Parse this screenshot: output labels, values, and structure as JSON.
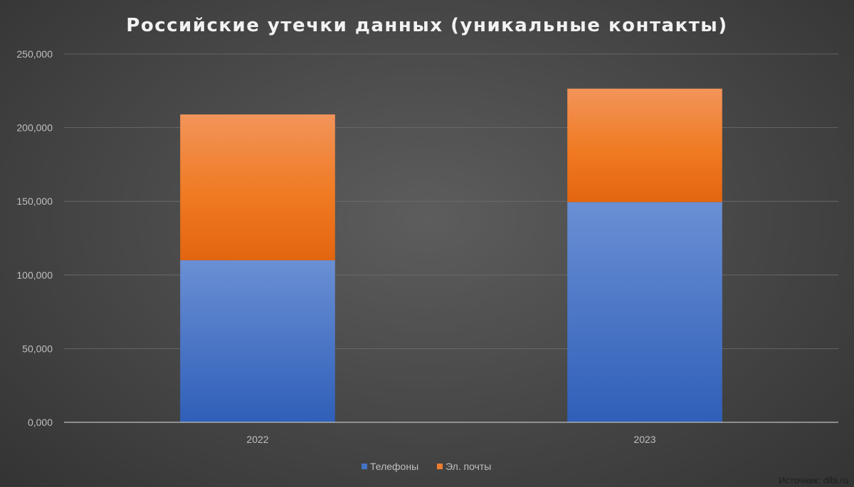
{
  "chart_data": {
    "type": "bar",
    "stacked": true,
    "title": "Российские утечки данных (уникальные контакты)",
    "categories": [
      "2022",
      "2023"
    ],
    "series": [
      {
        "name": "Телефоны",
        "values": [
          110000,
          149500
        ],
        "color": "#4472c4"
      },
      {
        "name": "Эл. почты",
        "values": [
          99000,
          77000
        ],
        "color": "#ed7d31"
      }
    ],
    "ylim": [
      0,
      250000
    ],
    "yticks": [
      0,
      50000,
      100000,
      150000,
      200000,
      250000
    ],
    "ytick_labels": [
      "0,000",
      "50,000",
      "100,000",
      "150,000",
      "200,000",
      "250,000"
    ],
    "xlabel": "",
    "ylabel": "",
    "grid": true,
    "legend_position": "bottom"
  },
  "source_note": "Источник: dlbi.ru"
}
